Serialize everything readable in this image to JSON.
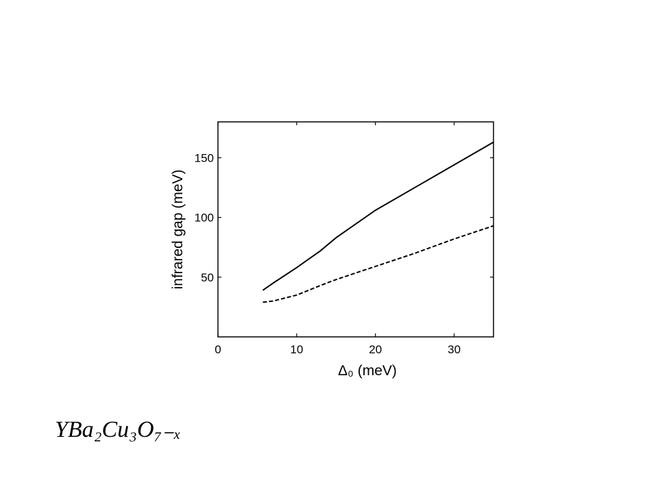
{
  "chart_data": {
    "type": "line",
    "x_label": "Δ₀ (meV)",
    "y_label": "infrared gap (meV)",
    "x": [
      5.7,
      7,
      10,
      13,
      15,
      20,
      25,
      30,
      35
    ],
    "series": [
      {
        "color": "#000000",
        "dash": false,
        "values": [
          39,
          45,
          58,
          72,
          83,
          106,
          125,
          144,
          163
        ]
      },
      {
        "color": "#000000",
        "dash": true,
        "values": [
          29,
          30,
          35,
          43,
          48,
          59,
          70,
          82,
          93
        ]
      }
    ],
    "xlim": [
      0,
      35
    ],
    "ylim": [
      0,
      180
    ],
    "xticks": [
      0,
      10,
      20,
      30
    ],
    "yticks": [
      50,
      100,
      150
    ]
  },
  "caption": "YBa₂Cu₃O₇₋ₓ"
}
